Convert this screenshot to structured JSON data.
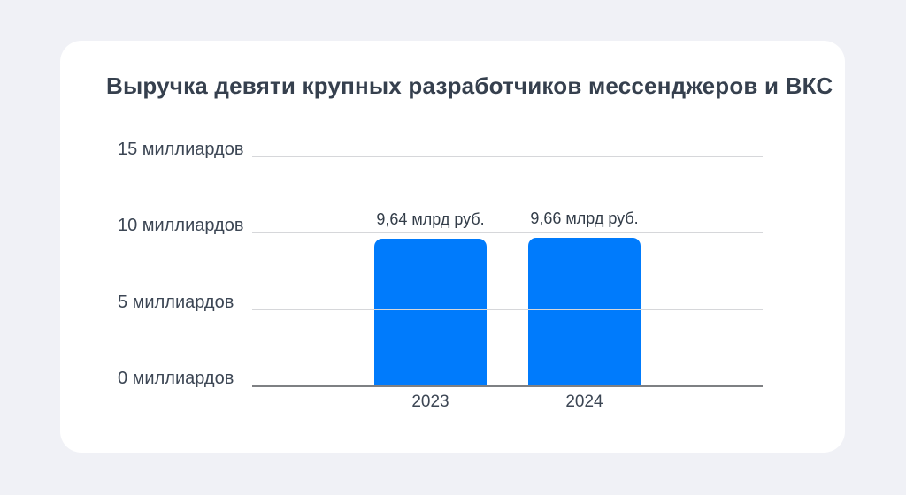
{
  "chart_data": {
    "type": "bar",
    "title": "Выручка девяти крупных разработчиков мессенджеров и ВКС",
    "categories": [
      "2023",
      "2024"
    ],
    "values": [
      9.64,
      9.66
    ],
    "value_labels": [
      "9,64 млрд руб.",
      "9,66 млрд руб."
    ],
    "units": "млрд руб.",
    "xlabel": "",
    "ylabel": "",
    "ylim": [
      0,
      15
    ],
    "yticks": [
      {
        "value": 0,
        "label": "0 миллиардов"
      },
      {
        "value": 5,
        "label": "5 миллиардов"
      },
      {
        "value": 10,
        "label": "10 миллиардов"
      },
      {
        "value": 15,
        "label": "15 миллиардов"
      }
    ],
    "grid": true,
    "legend": false,
    "bar_color": "#007BFC"
  },
  "colors": {
    "background": "#F0F1F6",
    "card": "#FFFFFF",
    "title_text": "#36404E",
    "axis_text": "#3C4654",
    "value_text": "#333D49",
    "gridline": "#D6D7DA",
    "axis_line": "#7E8083",
    "bar": "#007BFC"
  }
}
